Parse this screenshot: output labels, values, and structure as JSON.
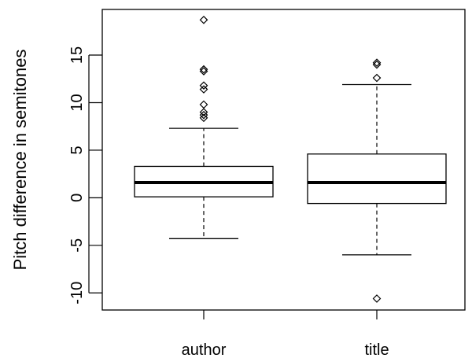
{
  "chart_data": {
    "type": "box",
    "ylabel": "Pitch difference in semitones",
    "ylim": [
      -11.8,
      19.8
    ],
    "yticks": [
      -10,
      -5,
      0,
      5,
      10,
      15
    ],
    "ytick_labels": [
      "-10",
      "-5",
      "0",
      "5",
      "10",
      "15"
    ],
    "grid": false,
    "categories": [
      "author",
      "title"
    ],
    "boxes": [
      {
        "category": "author",
        "whisker_low": -4.3,
        "q1": 0.1,
        "median": 1.6,
        "q3": 3.3,
        "whisker_high": 7.3,
        "outliers": [
          8.4,
          8.7,
          9.0,
          9.8,
          11.4,
          11.8,
          13.3,
          13.5,
          18.7
        ]
      },
      {
        "category": "title",
        "whisker_low": -6.0,
        "q1": -0.6,
        "median": 1.6,
        "q3": 4.6,
        "whisker_high": 11.9,
        "outliers": [
          -10.6,
          12.6,
          14.0,
          14.2
        ]
      }
    ],
    "colors": {
      "stroke": "#000000",
      "background": "#ffffff"
    }
  }
}
